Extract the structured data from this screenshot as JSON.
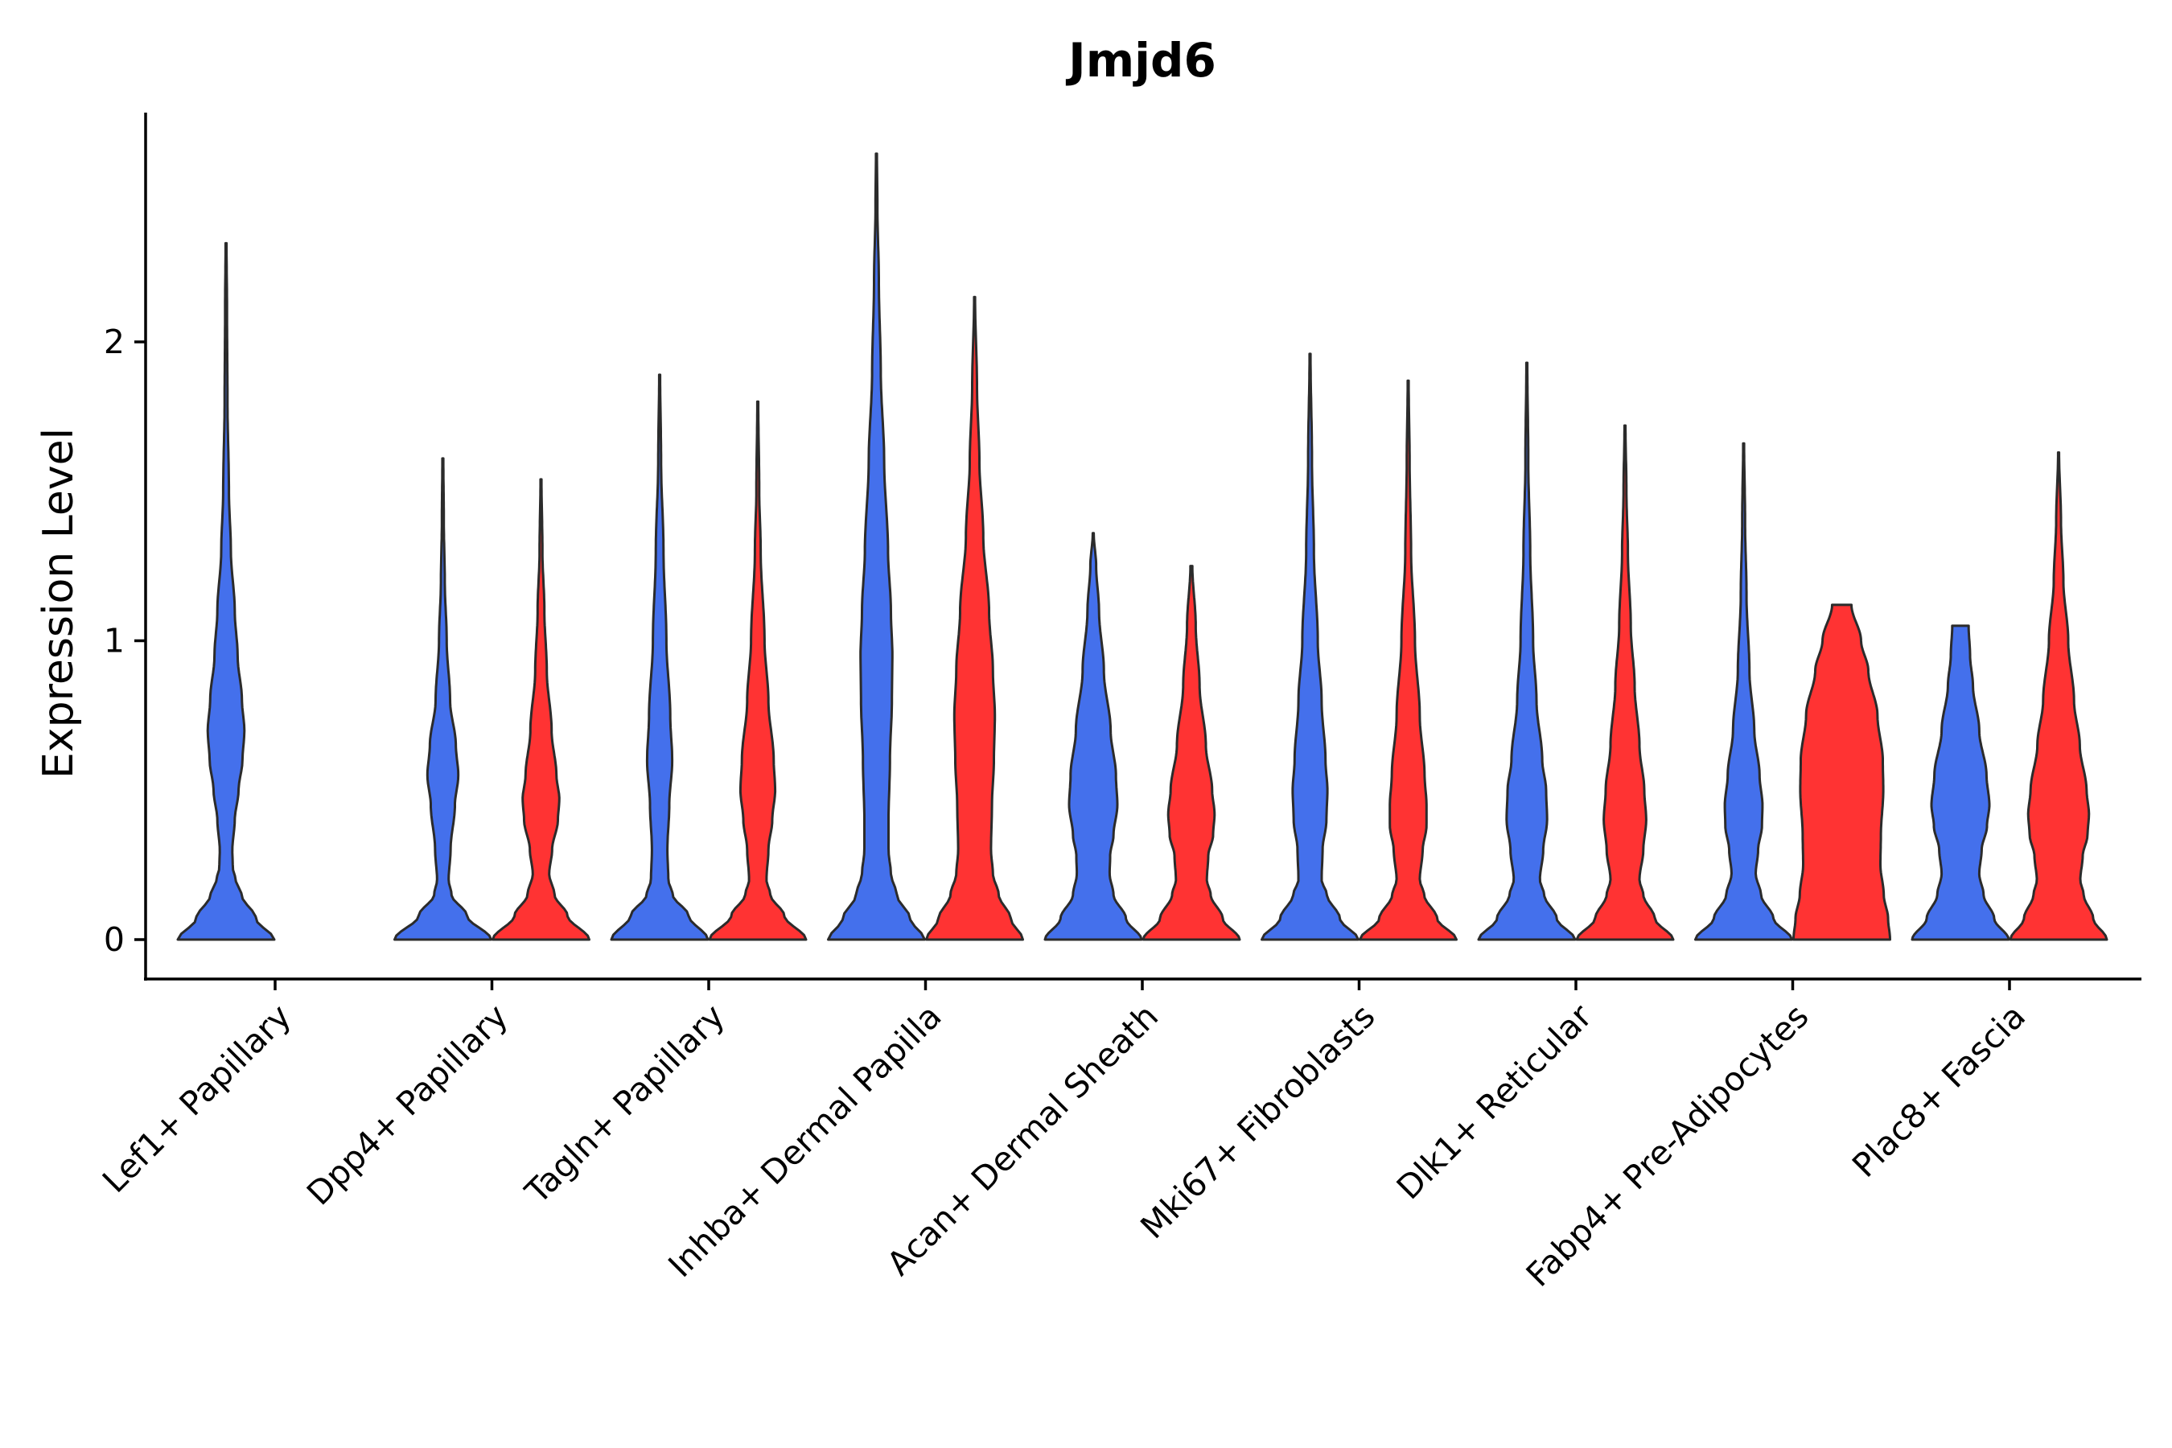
{
  "chart_data": {
    "type": "violin",
    "title": "Jmjd6",
    "xlabel": "",
    "ylabel": "Expression Level",
    "ylim": [
      -0.13,
      2.75
    ],
    "yticks": [
      0,
      1,
      2
    ],
    "categories": [
      "Lef1+ Papillary",
      "Dpp4+ Papillary",
      "Tagln+ Papillary",
      "Inhba+ Dermal Papilla",
      "Acan+ Dermal Sheath",
      "Mki67+ Fibroblasts",
      "Dlk1+ Reticular",
      "Fabp4+ Pre-Adipocytes",
      "Plac8+ Fascia"
    ],
    "groups": [
      {
        "name": "group-1",
        "color": "#4470EC"
      },
      {
        "name": "group-2",
        "color": "#FF3333"
      }
    ],
    "violins": [
      {
        "category": 0,
        "group": 0,
        "max": 2.33,
        "profile": [
          [
            0,
            1.0
          ],
          [
            0.07,
            0.62
          ],
          [
            0.15,
            0.32
          ],
          [
            0.2,
            0.2
          ],
          [
            0.24,
            0.14
          ],
          [
            0.3,
            0.13
          ],
          [
            0.4,
            0.18
          ],
          [
            0.5,
            0.26
          ],
          [
            0.6,
            0.34
          ],
          [
            0.7,
            0.38
          ],
          [
            0.8,
            0.33
          ],
          [
            0.95,
            0.24
          ],
          [
            1.1,
            0.18
          ],
          [
            1.3,
            0.1
          ],
          [
            1.5,
            0.06
          ],
          [
            1.8,
            0.03
          ],
          [
            2.1,
            0.02
          ],
          [
            2.33,
            0.01
          ]
        ]
      },
      {
        "category": 1,
        "group": 0,
        "max": 1.61,
        "profile": [
          [
            0,
            1.0
          ],
          [
            0.08,
            0.5
          ],
          [
            0.15,
            0.18
          ],
          [
            0.2,
            0.12
          ],
          [
            0.3,
            0.16
          ],
          [
            0.45,
            0.25
          ],
          [
            0.55,
            0.32
          ],
          [
            0.65,
            0.27
          ],
          [
            0.8,
            0.15
          ],
          [
            1.0,
            0.08
          ],
          [
            1.2,
            0.04
          ],
          [
            1.4,
            0.02
          ],
          [
            1.61,
            0.01
          ]
        ]
      },
      {
        "category": 1,
        "group": 1,
        "max": 1.54,
        "profile": [
          [
            0,
            1.0
          ],
          [
            0.08,
            0.55
          ],
          [
            0.15,
            0.28
          ],
          [
            0.22,
            0.17
          ],
          [
            0.3,
            0.23
          ],
          [
            0.4,
            0.35
          ],
          [
            0.47,
            0.38
          ],
          [
            0.55,
            0.32
          ],
          [
            0.7,
            0.22
          ],
          [
            0.9,
            0.12
          ],
          [
            1.1,
            0.07
          ],
          [
            1.3,
            0.03
          ],
          [
            1.54,
            0.01
          ]
        ]
      },
      {
        "category": 2,
        "group": 0,
        "max": 1.89,
        "profile": [
          [
            0,
            1.0
          ],
          [
            0.08,
            0.6
          ],
          [
            0.15,
            0.27
          ],
          [
            0.2,
            0.18
          ],
          [
            0.3,
            0.16
          ],
          [
            0.45,
            0.2
          ],
          [
            0.6,
            0.26
          ],
          [
            0.75,
            0.22
          ],
          [
            1.0,
            0.14
          ],
          [
            1.3,
            0.08
          ],
          [
            1.6,
            0.03
          ],
          [
            1.89,
            0.01
          ]
        ]
      },
      {
        "category": 2,
        "group": 1,
        "max": 1.8,
        "profile": [
          [
            0,
            1.0
          ],
          [
            0.08,
            0.55
          ],
          [
            0.15,
            0.26
          ],
          [
            0.2,
            0.18
          ],
          [
            0.3,
            0.22
          ],
          [
            0.4,
            0.3
          ],
          [
            0.5,
            0.36
          ],
          [
            0.6,
            0.33
          ],
          [
            0.8,
            0.22
          ],
          [
            1.0,
            0.14
          ],
          [
            1.3,
            0.06
          ],
          [
            1.5,
            0.03
          ],
          [
            1.8,
            0.01
          ]
        ]
      },
      {
        "category": 3,
        "group": 0,
        "max": 2.63,
        "profile": [
          [
            0,
            1.0
          ],
          [
            0.07,
            0.7
          ],
          [
            0.15,
            0.42
          ],
          [
            0.22,
            0.3
          ],
          [
            0.3,
            0.25
          ],
          [
            0.4,
            0.25
          ],
          [
            0.6,
            0.28
          ],
          [
            0.8,
            0.32
          ],
          [
            0.95,
            0.33
          ],
          [
            1.1,
            0.3
          ],
          [
            1.3,
            0.24
          ],
          [
            1.6,
            0.16
          ],
          [
            1.9,
            0.09
          ],
          [
            2.2,
            0.05
          ],
          [
            2.45,
            0.02
          ],
          [
            2.63,
            0.01
          ]
        ]
      },
      {
        "category": 3,
        "group": 1,
        "max": 2.15,
        "profile": [
          [
            0,
            1.0
          ],
          [
            0.07,
            0.75
          ],
          [
            0.15,
            0.5
          ],
          [
            0.22,
            0.38
          ],
          [
            0.3,
            0.34
          ],
          [
            0.45,
            0.36
          ],
          [
            0.6,
            0.4
          ],
          [
            0.75,
            0.42
          ],
          [
            0.9,
            0.38
          ],
          [
            1.1,
            0.3
          ],
          [
            1.35,
            0.18
          ],
          [
            1.6,
            0.1
          ],
          [
            1.85,
            0.05
          ],
          [
            2.15,
            0.01
          ]
        ]
      },
      {
        "category": 4,
        "group": 0,
        "max": 1.36,
        "profile": [
          [
            0,
            1.0
          ],
          [
            0.07,
            0.68
          ],
          [
            0.15,
            0.42
          ],
          [
            0.22,
            0.34
          ],
          [
            0.28,
            0.35
          ],
          [
            0.35,
            0.42
          ],
          [
            0.45,
            0.5
          ],
          [
            0.55,
            0.47
          ],
          [
            0.7,
            0.36
          ],
          [
            0.9,
            0.22
          ],
          [
            1.1,
            0.12
          ],
          [
            1.25,
            0.06
          ],
          [
            1.36,
            0.01
          ]
        ]
      },
      {
        "category": 4,
        "group": 1,
        "max": 1.25,
        "profile": [
          [
            0,
            1.0
          ],
          [
            0.07,
            0.65
          ],
          [
            0.15,
            0.4
          ],
          [
            0.2,
            0.32
          ],
          [
            0.28,
            0.35
          ],
          [
            0.35,
            0.45
          ],
          [
            0.42,
            0.48
          ],
          [
            0.5,
            0.43
          ],
          [
            0.65,
            0.3
          ],
          [
            0.85,
            0.17
          ],
          [
            1.05,
            0.09
          ],
          [
            1.25,
            0.02
          ]
        ]
      },
      {
        "category": 5,
        "group": 0,
        "max": 1.96,
        "profile": [
          [
            0,
            1.0
          ],
          [
            0.07,
            0.62
          ],
          [
            0.15,
            0.35
          ],
          [
            0.2,
            0.24
          ],
          [
            0.3,
            0.26
          ],
          [
            0.4,
            0.34
          ],
          [
            0.5,
            0.36
          ],
          [
            0.6,
            0.32
          ],
          [
            0.8,
            0.24
          ],
          [
            1.0,
            0.16
          ],
          [
            1.3,
            0.08
          ],
          [
            1.6,
            0.04
          ],
          [
            1.96,
            0.01
          ]
        ]
      },
      {
        "category": 5,
        "group": 1,
        "max": 1.87,
        "profile": [
          [
            0,
            1.0
          ],
          [
            0.07,
            0.6
          ],
          [
            0.15,
            0.33
          ],
          [
            0.2,
            0.24
          ],
          [
            0.3,
            0.3
          ],
          [
            0.38,
            0.38
          ],
          [
            0.45,
            0.38
          ],
          [
            0.55,
            0.34
          ],
          [
            0.75,
            0.24
          ],
          [
            1.0,
            0.14
          ],
          [
            1.3,
            0.06
          ],
          [
            1.6,
            0.03
          ],
          [
            1.87,
            0.01
          ]
        ]
      },
      {
        "category": 6,
        "group": 0,
        "max": 1.93,
        "profile": [
          [
            0,
            1.0
          ],
          [
            0.07,
            0.62
          ],
          [
            0.15,
            0.36
          ],
          [
            0.2,
            0.27
          ],
          [
            0.3,
            0.34
          ],
          [
            0.4,
            0.42
          ],
          [
            0.5,
            0.4
          ],
          [
            0.6,
            0.32
          ],
          [
            0.8,
            0.2
          ],
          [
            1.0,
            0.13
          ],
          [
            1.3,
            0.07
          ],
          [
            1.6,
            0.03
          ],
          [
            1.93,
            0.01
          ]
        ]
      },
      {
        "category": 6,
        "group": 1,
        "max": 1.72,
        "profile": [
          [
            0,
            1.0
          ],
          [
            0.07,
            0.62
          ],
          [
            0.15,
            0.38
          ],
          [
            0.2,
            0.3
          ],
          [
            0.3,
            0.38
          ],
          [
            0.4,
            0.44
          ],
          [
            0.5,
            0.4
          ],
          [
            0.65,
            0.3
          ],
          [
            0.85,
            0.2
          ],
          [
            1.05,
            0.12
          ],
          [
            1.3,
            0.06
          ],
          [
            1.5,
            0.03
          ],
          [
            1.72,
            0.01
          ]
        ]
      },
      {
        "category": 7,
        "group": 0,
        "max": 1.66,
        "profile": [
          [
            0,
            1.0
          ],
          [
            0.07,
            0.62
          ],
          [
            0.15,
            0.36
          ],
          [
            0.22,
            0.25
          ],
          [
            0.3,
            0.3
          ],
          [
            0.38,
            0.38
          ],
          [
            0.45,
            0.39
          ],
          [
            0.55,
            0.33
          ],
          [
            0.7,
            0.22
          ],
          [
            0.9,
            0.12
          ],
          [
            1.15,
            0.06
          ],
          [
            1.4,
            0.03
          ],
          [
            1.66,
            0.01
          ]
        ]
      },
      {
        "category": 7,
        "group": 1,
        "max": 1.12,
        "profile": [
          [
            0,
            1.0
          ],
          [
            0.07,
            0.96
          ],
          [
            0.15,
            0.87
          ],
          [
            0.25,
            0.8
          ],
          [
            0.35,
            0.81
          ],
          [
            0.5,
            0.86
          ],
          [
            0.6,
            0.85
          ],
          [
            0.75,
            0.74
          ],
          [
            0.9,
            0.55
          ],
          [
            1.0,
            0.4
          ],
          [
            1.12,
            0.2
          ]
        ]
      },
      {
        "category": 8,
        "group": 0,
        "max": 1.05,
        "profile": [
          [
            0,
            1.0
          ],
          [
            0.07,
            0.7
          ],
          [
            0.15,
            0.48
          ],
          [
            0.22,
            0.39
          ],
          [
            0.3,
            0.44
          ],
          [
            0.38,
            0.55
          ],
          [
            0.45,
            0.6
          ],
          [
            0.55,
            0.54
          ],
          [
            0.7,
            0.39
          ],
          [
            0.85,
            0.26
          ],
          [
            0.95,
            0.2
          ],
          [
            1.05,
            0.17
          ]
        ]
      },
      {
        "category": 8,
        "group": 1,
        "max": 1.63,
        "profile": [
          [
            0,
            1.0
          ],
          [
            0.07,
            0.72
          ],
          [
            0.15,
            0.52
          ],
          [
            0.2,
            0.45
          ],
          [
            0.28,
            0.5
          ],
          [
            0.35,
            0.6
          ],
          [
            0.42,
            0.63
          ],
          [
            0.5,
            0.58
          ],
          [
            0.65,
            0.44
          ],
          [
            0.8,
            0.32
          ],
          [
            1.0,
            0.2
          ],
          [
            1.2,
            0.1
          ],
          [
            1.4,
            0.05
          ],
          [
            1.63,
            0.01
          ]
        ]
      }
    ]
  }
}
